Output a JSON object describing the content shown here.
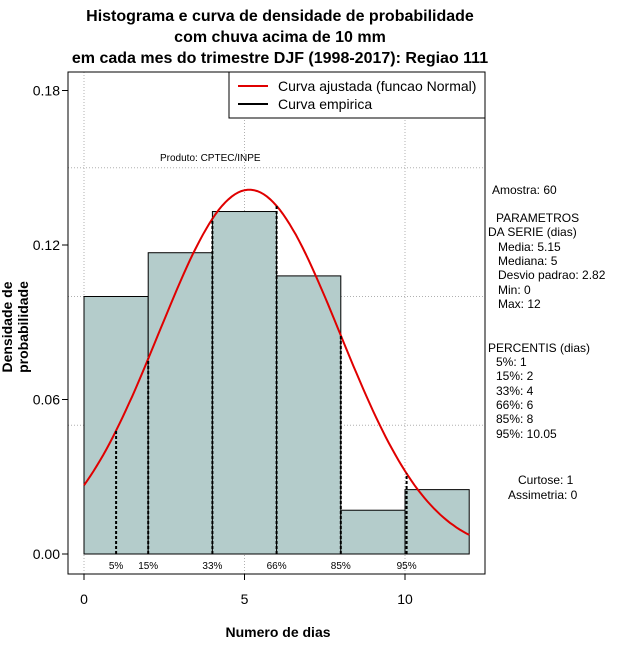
{
  "titles": [
    "Histograma e curva de densidade de probabilidade",
    "com chuva acima de 10 mm",
    "em cada mes do trimestre DJF (1998-2017): Regiao 111"
  ],
  "chart_data": {
    "type": "bar",
    "xlabel": "Numero de dias",
    "ylabel": "Densidade de probabilidade",
    "xlim": [
      -1,
      12.5
    ],
    "ylim": [
      0,
      0.18
    ],
    "x_ticks": [
      0,
      5,
      10
    ],
    "y_ticks": [
      "0.00",
      "0.06",
      "0.12",
      "0.18"
    ],
    "grid": true,
    "bins": [
      {
        "from": 0,
        "to": 2,
        "density": 0.1
      },
      {
        "from": 2,
        "to": 4,
        "density": 0.117
      },
      {
        "from": 4,
        "to": 6,
        "density": 0.133
      },
      {
        "from": 6,
        "to": 8,
        "density": 0.108
      },
      {
        "from": 8,
        "to": 10,
        "density": 0.017
      },
      {
        "from": 10,
        "to": 12,
        "density": 0.025
      }
    ],
    "normal_curve": {
      "name": "Curva ajustada (funcao Normal)",
      "mean": 5.15,
      "sd": 2.82,
      "color": "#e00000"
    },
    "empirical_curve": {
      "name": "Curva empirica",
      "color": "#000000"
    },
    "percentile_marks": [
      {
        "label": "5%",
        "x": 1
      },
      {
        "label": "15%",
        "x": 2
      },
      {
        "label": "33%",
        "x": 4
      },
      {
        "label": "66%",
        "x": 6
      },
      {
        "label": "85%",
        "x": 8
      },
      {
        "label": "95%",
        "x": 10.05
      }
    ],
    "legend_position": "top-right",
    "bar_color": "#b4cccb"
  },
  "credit": "Produto: CPTEC/INPE",
  "stats": {
    "amostra": "Amostra: 60",
    "params_title_1": "PARAMETROS",
    "params_title_2": "DA SERIE (dias)",
    "media": "Media: 5.15",
    "mediana": "Mediana: 5",
    "desvio": "Desvio padrao: 2.82",
    "min": "Min: 0",
    "max": "Max: 12",
    "percentis_title": "PERCENTIS (dias)",
    "p5": "5%: 1",
    "p15": "15%: 2",
    "p33": "33%: 4",
    "p66": "66%: 6",
    "p85": "85%: 8",
    "p95": "95%: 10.05",
    "curtose": "Curtose: 1",
    "assimetria": "Assimetria: 0"
  }
}
